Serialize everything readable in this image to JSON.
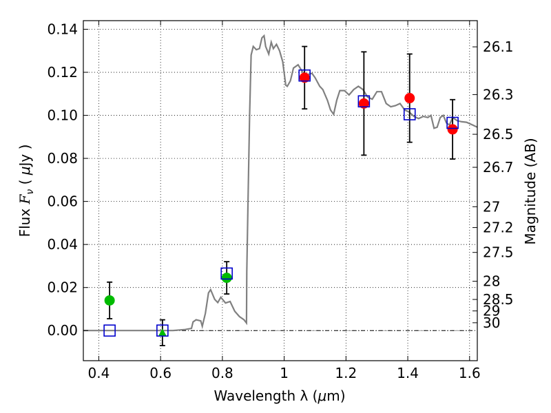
{
  "chart_data": {
    "type": "scatter",
    "xlabel_text": "Wavelength  λ (",
    "xlabel_unit": "μ",
    "xlabel_tail": "m)",
    "ylabel_text": "Flux  ",
    "ylabel_symbol": "F",
    "ylabel_sub": "ν",
    "ylabel_unit_open": "  ( ",
    "ylabel_unit_mu": "μ",
    "ylabel_unit_tail": "Jy )",
    "y2label": "Magnitude (AB)",
    "xlim": [
      0.35,
      1.625
    ],
    "ylim": [
      -0.014,
      0.144
    ],
    "xticks": [
      0.4,
      0.6,
      0.8,
      1.0,
      1.2,
      1.4,
      1.6
    ],
    "xtick_labels": [
      "0.4",
      "0.6",
      "0.8",
      "1",
      "1.2",
      "1.4",
      "1.6"
    ],
    "yticks": [
      0.0,
      0.02,
      0.04,
      0.06,
      0.08,
      0.1,
      0.12,
      0.14
    ],
    "ytick_labels": [
      "0.00",
      "0.02",
      "0.04",
      "0.06",
      "0.08",
      "0.10",
      "0.12",
      "0.14"
    ],
    "mag_ticks": [
      "26.1",
      "26.3",
      "26.5",
      "26.7",
      "27",
      "27.2",
      "27.5",
      "28",
      "28.5",
      "29",
      "30"
    ],
    "mag_zero_flux_ujy": 0.003631,
    "grid": true,
    "colors": {
      "sed": "#808080",
      "green": "#00bb00",
      "red": "#ff0000",
      "model": "#0000cc",
      "errorbar": "#000000"
    },
    "observed_points": [
      {
        "x": 0.435,
        "y": 0.014,
        "yerr": 0.0085,
        "color": "green"
      },
      {
        "x": 0.606,
        "y": -0.001,
        "yerr": 0.006,
        "color": "green",
        "marker": "triangle"
      },
      {
        "x": 0.814,
        "y": 0.0245,
        "yerr": 0.0075,
        "color": "green"
      },
      {
        "x": 1.066,
        "y": 0.1175,
        "yerr": 0.0145,
        "color": "red"
      },
      {
        "x": 1.258,
        "y": 0.1055,
        "yerr": 0.024,
        "color": "red"
      },
      {
        "x": 1.406,
        "y": 0.108,
        "yerr": 0.0205,
        "color": "red"
      },
      {
        "x": 1.545,
        "y": 0.0935,
        "yerr": 0.0138,
        "color": "red"
      }
    ],
    "model_points": [
      {
        "x": 0.435,
        "y": 0.0
      },
      {
        "x": 0.606,
        "y": 0.0
      },
      {
        "x": 0.814,
        "y": 0.0265
      },
      {
        "x": 1.066,
        "y": 0.1185
      },
      {
        "x": 1.258,
        "y": 0.1065
      },
      {
        "x": 1.406,
        "y": 0.1005
      },
      {
        "x": 1.545,
        "y": 0.0965
      }
    ],
    "sed_curve": [
      [
        0.35,
        0.0
      ],
      [
        0.6,
        0.0
      ],
      [
        0.64,
        0.0
      ],
      [
        0.68,
        0.0005
      ],
      [
        0.7,
        0.001
      ],
      [
        0.705,
        0.004
      ],
      [
        0.715,
        0.005
      ],
      [
        0.73,
        0.0045
      ],
      [
        0.735,
        0.002
      ],
      [
        0.745,
        0.008
      ],
      [
        0.755,
        0.0175
      ],
      [
        0.762,
        0.019
      ],
      [
        0.775,
        0.0145
      ],
      [
        0.785,
        0.013
      ],
      [
        0.795,
        0.0155
      ],
      [
        0.81,
        0.0128
      ],
      [
        0.825,
        0.0135
      ],
      [
        0.84,
        0.009
      ],
      [
        0.855,
        0.0065
      ],
      [
        0.87,
        0.005
      ],
      [
        0.878,
        0.0035
      ],
      [
        0.879,
        0.027
      ],
      [
        0.883,
        0.06
      ],
      [
        0.888,
        0.1
      ],
      [
        0.893,
        0.128
      ],
      [
        0.9,
        0.132
      ],
      [
        0.91,
        0.1305
      ],
      [
        0.92,
        0.131
      ],
      [
        0.928,
        0.136
      ],
      [
        0.935,
        0.137
      ],
      [
        0.94,
        0.132
      ],
      [
        0.95,
        0.1285
      ],
      [
        0.958,
        0.134
      ],
      [
        0.965,
        0.131
      ],
      [
        0.975,
        0.133
      ],
      [
        0.985,
        0.13
      ],
      [
        0.995,
        0.125
      ],
      [
        1.005,
        0.114
      ],
      [
        1.01,
        0.1135
      ],
      [
        1.02,
        0.116
      ],
      [
        1.03,
        0.122
      ],
      [
        1.045,
        0.1235
      ],
      [
        1.06,
        0.12
      ],
      [
        1.075,
        0.119
      ],
      [
        1.09,
        0.1195
      ],
      [
        1.1,
        0.1175
      ],
      [
        1.115,
        0.1135
      ],
      [
        1.125,
        0.112
      ],
      [
        1.14,
        0.107
      ],
      [
        1.15,
        0.1025
      ],
      [
        1.16,
        0.1005
      ],
      [
        1.17,
        0.107
      ],
      [
        1.18,
        0.1115
      ],
      [
        1.195,
        0.1115
      ],
      [
        1.21,
        0.1095
      ],
      [
        1.225,
        0.112
      ],
      [
        1.24,
        0.1135
      ],
      [
        1.255,
        0.112
      ],
      [
        1.27,
        0.1085
      ],
      [
        1.285,
        0.1075
      ],
      [
        1.3,
        0.111
      ],
      [
        1.315,
        0.111
      ],
      [
        1.33,
        0.1055
      ],
      [
        1.345,
        0.104
      ],
      [
        1.36,
        0.1045
      ],
      [
        1.375,
        0.1055
      ],
      [
        1.39,
        0.1025
      ],
      [
        1.405,
        0.1015
      ],
      [
        1.42,
        0.0995
      ],
      [
        1.435,
        0.0985
      ],
      [
        1.45,
        0.0995
      ],
      [
        1.465,
        0.099
      ],
      [
        1.475,
        0.1
      ],
      [
        1.485,
        0.094
      ],
      [
        1.495,
        0.0945
      ],
      [
        1.505,
        0.099
      ],
      [
        1.515,
        0.1
      ],
      [
        1.525,
        0.0965
      ],
      [
        1.535,
        0.0955
      ],
      [
        1.545,
        0.099
      ],
      [
        1.56,
        0.0975
      ],
      [
        1.575,
        0.097
      ],
      [
        1.59,
        0.0968
      ],
      [
        1.61,
        0.0955
      ],
      [
        1.625,
        0.0945
      ]
    ]
  }
}
